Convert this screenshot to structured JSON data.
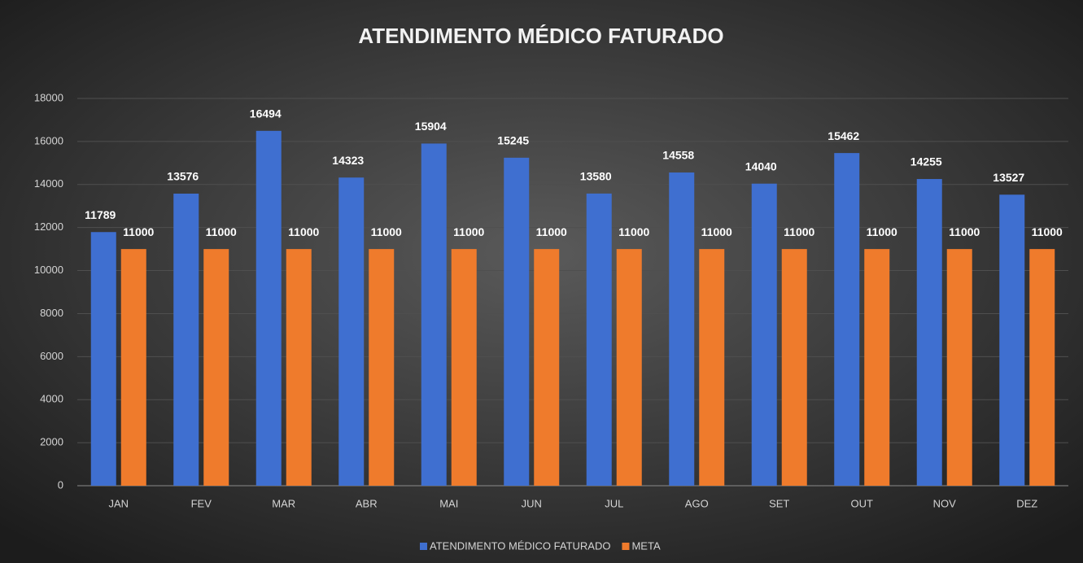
{
  "chart_data": {
    "type": "bar",
    "title": "ATENDIMENTO MÉDICO FATURADO",
    "categories": [
      "JAN",
      "FEV",
      "MAR",
      "ABR",
      "MAI",
      "JUN",
      "JUL",
      "AGO",
      "SET",
      "OUT",
      "NOV",
      "DEZ"
    ],
    "series": [
      {
        "name": "ATENDIMENTO MÉDICO FATURADO",
        "color": "#3f6fd0",
        "values": [
          11789,
          13576,
          16494,
          14323,
          15904,
          15245,
          13580,
          14558,
          14040,
          15462,
          14255,
          13527
        ]
      },
      {
        "name": "META",
        "color": "#ef7b2c",
        "values": [
          11000,
          11000,
          11000,
          11000,
          11000,
          11000,
          11000,
          11000,
          11000,
          11000,
          11000,
          11000
        ]
      }
    ],
    "ylim": [
      0,
      18000
    ],
    "yticks": [
      0,
      2000,
      4000,
      6000,
      8000,
      10000,
      12000,
      14000,
      16000,
      18000
    ],
    "grid": true,
    "legend": "bottom"
  }
}
